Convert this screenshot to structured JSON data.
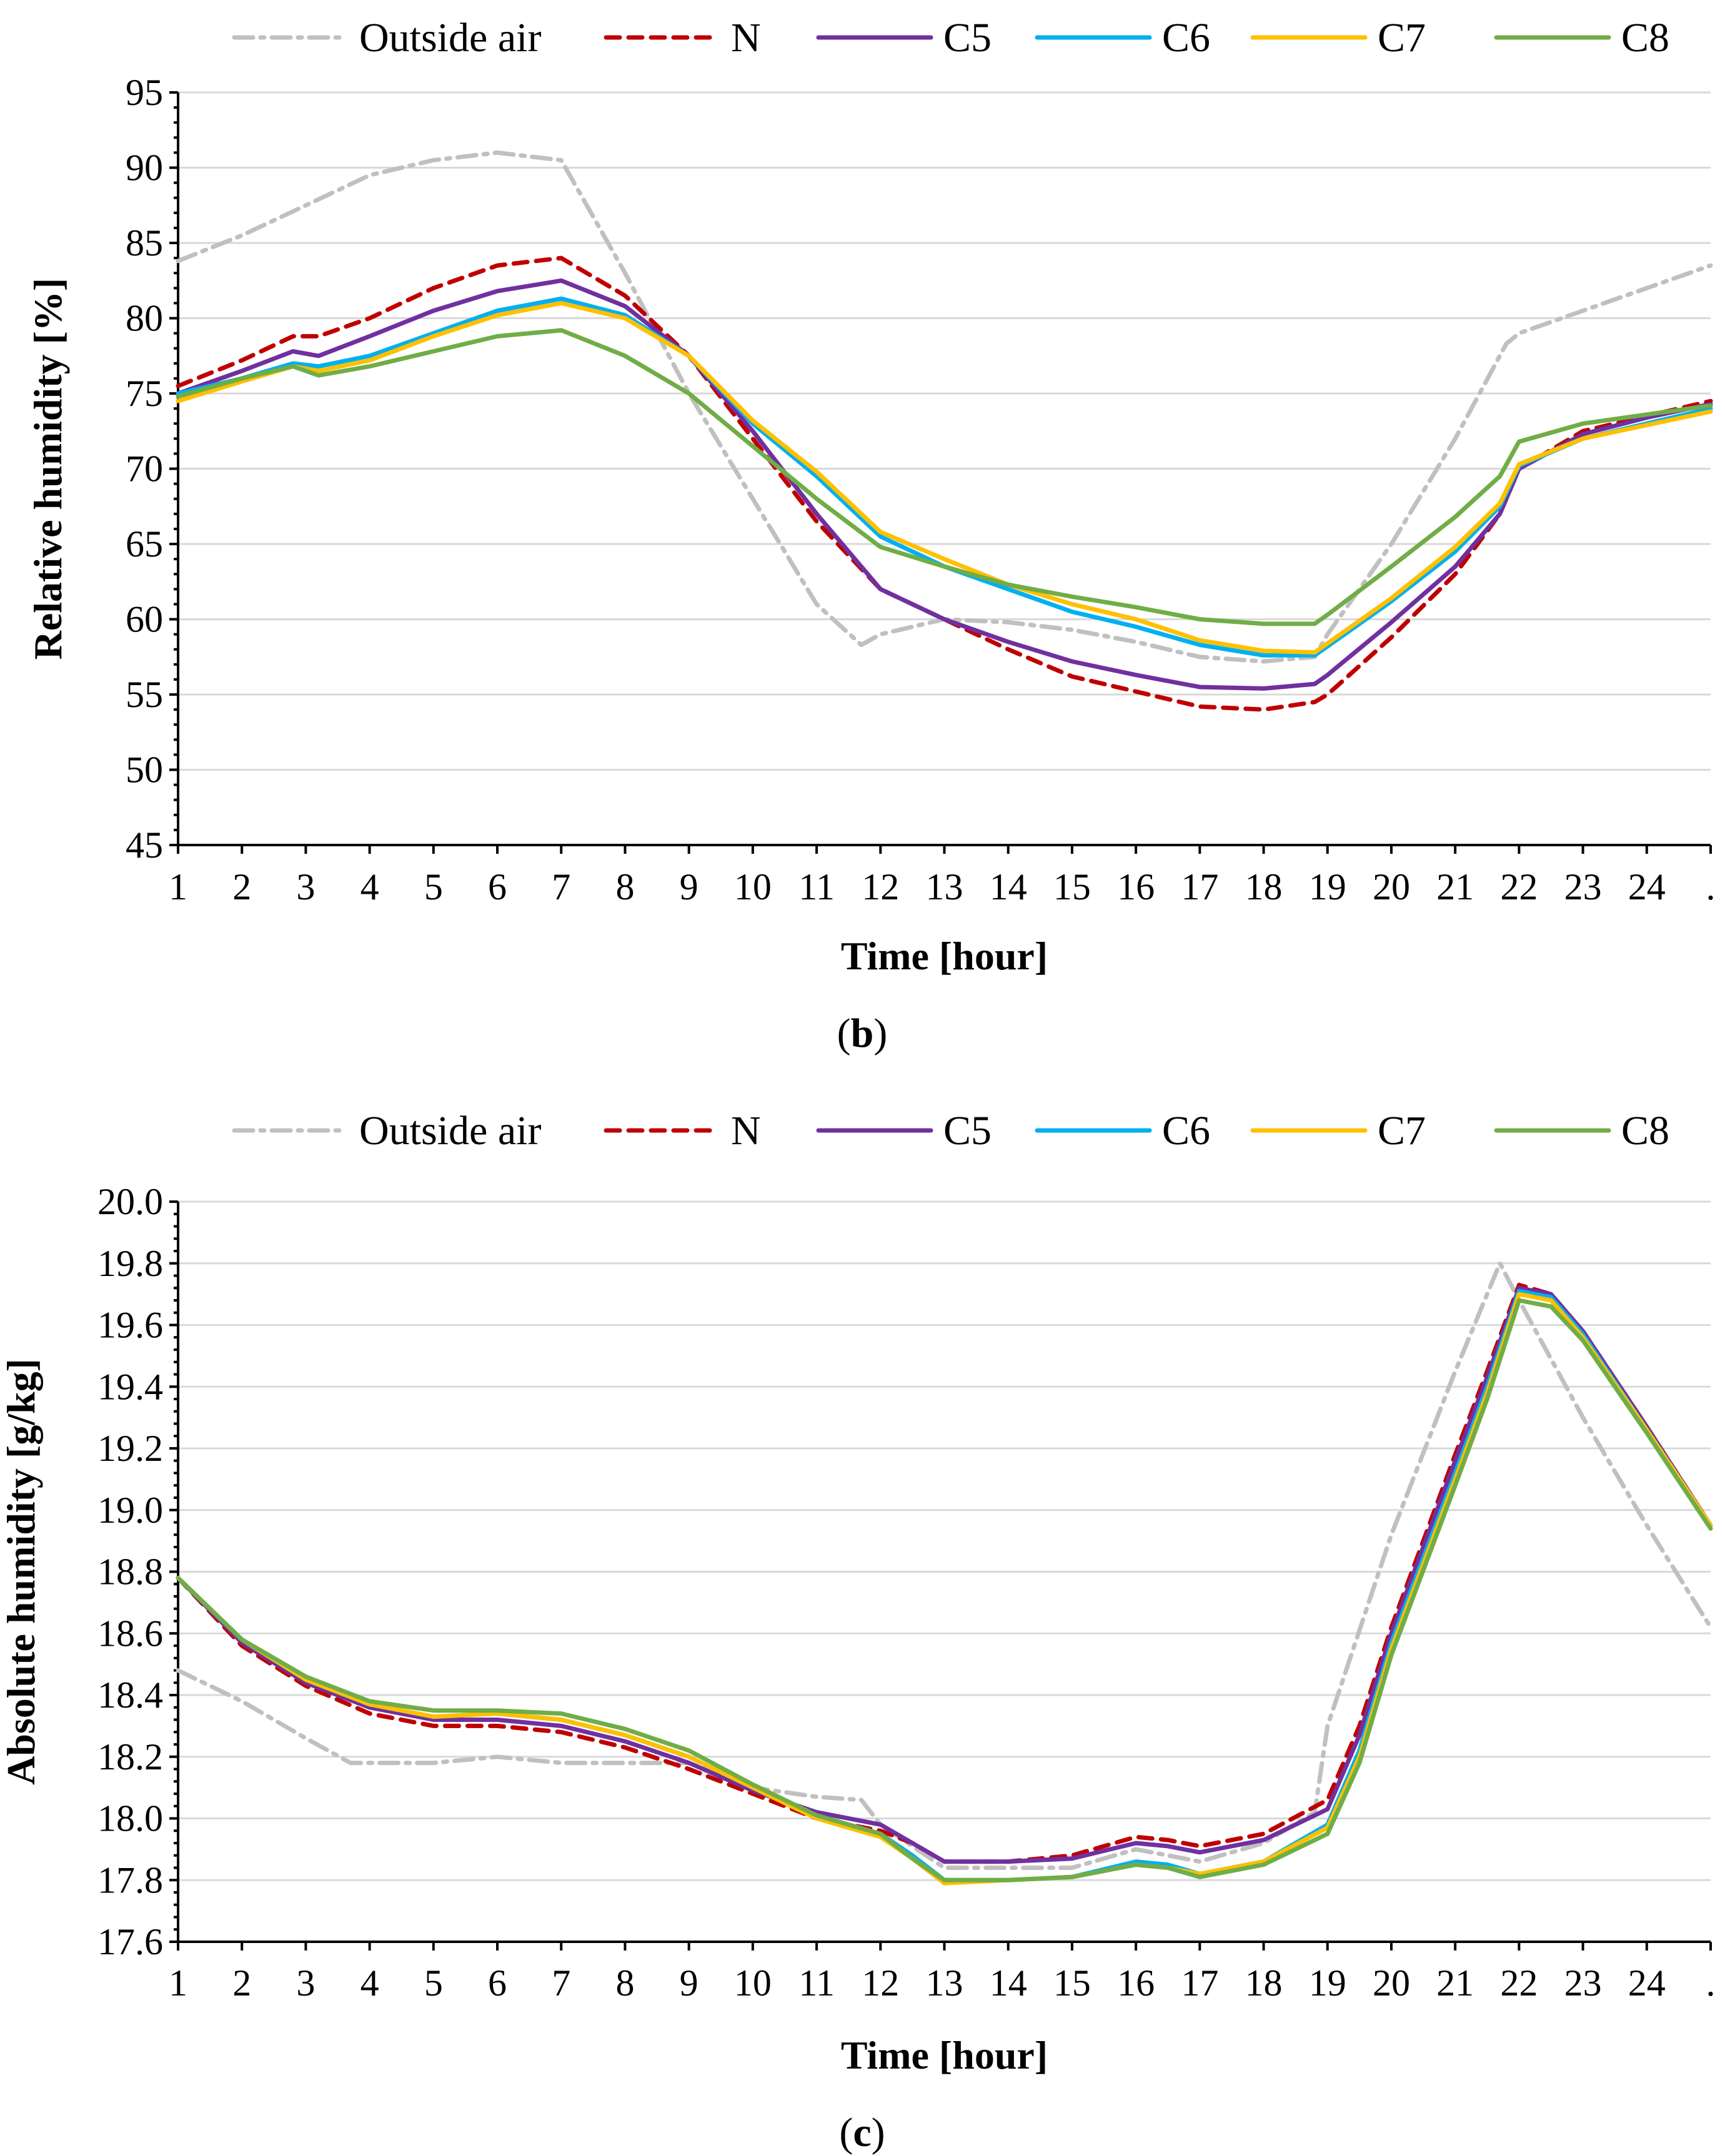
{
  "chart_data": [
    {
      "type": "line",
      "panel_label": "b",
      "xlabel": "Time [hour]",
      "ylabel": "Relative humidity [%]",
      "ylim": [
        45,
        95
      ],
      "yticks": [
        "45",
        "50",
        "55",
        "60",
        "65",
        "70",
        "75",
        "80",
        "85",
        "90",
        "95"
      ],
      "xlim": [
        1,
        25
      ],
      "xticks": [
        "1",
        "2",
        "3",
        "4",
        "5",
        "6",
        "7",
        "8",
        "9",
        "10",
        "11",
        "12",
        "13",
        "14",
        "15",
        "16",
        "17",
        "18",
        "19",
        "20",
        "21",
        "22",
        "23",
        "24",
        "."
      ],
      "grid": "horizontal",
      "legend_position": "top",
      "series": [
        {
          "name": "Outside air",
          "color": "#c0c0c0",
          "dash": "dashdot",
          "x": [
            1,
            2,
            3,
            4,
            5,
            6,
            7,
            8,
            9,
            10,
            11,
            11.7,
            12,
            13,
            14,
            15,
            16,
            17,
            18,
            18.8,
            19,
            20,
            21,
            21.8,
            22,
            23,
            24,
            25
          ],
          "y": [
            83.8,
            85.5,
            87.5,
            89.5,
            90.5,
            91,
            90.5,
            83,
            75,
            68,
            61,
            58.3,
            59,
            60,
            59.8,
            59.3,
            58.5,
            57.5,
            57.2,
            57.5,
            59,
            65,
            72,
            78.3,
            79,
            80.5,
            82,
            83.5
          ]
        },
        {
          "name": "N",
          "color": "#c00000",
          "dash": "dash",
          "x": [
            1,
            2,
            2.8,
            3.2,
            4,
            5,
            6,
            7,
            8,
            9,
            10,
            11,
            12,
            13,
            14,
            15,
            16,
            17,
            18,
            18.8,
            19,
            20,
            21,
            21.7,
            22,
            23,
            24,
            25
          ],
          "y": [
            75.5,
            77.2,
            78.8,
            78.8,
            80,
            82,
            83.5,
            84,
            81.5,
            77.5,
            72,
            66.5,
            62,
            60,
            58,
            56.2,
            55.2,
            54.2,
            54,
            54.5,
            55,
            58.8,
            63,
            67,
            70,
            72.5,
            73.5,
            74.5
          ]
        },
        {
          "name": "C5",
          "color": "#7030a0",
          "dash": "solid",
          "x": [
            1,
            2,
            2.8,
            3.2,
            4,
            5,
            6,
            7,
            8,
            9,
            10,
            11,
            12,
            13,
            14,
            15,
            16,
            17,
            18,
            18.8,
            19,
            20,
            21,
            21.7,
            22,
            23,
            24,
            25
          ],
          "y": [
            75,
            76.5,
            77.8,
            77.5,
            78.8,
            80.5,
            81.8,
            82.5,
            80.8,
            77.5,
            72.5,
            67,
            62,
            60,
            58.5,
            57.2,
            56.3,
            55.5,
            55.4,
            55.7,
            56.3,
            59.8,
            63.5,
            67,
            70,
            72.3,
            73.4,
            74.3
          ]
        },
        {
          "name": "C6",
          "color": "#00b0f0",
          "dash": "solid",
          "x": [
            1,
            2,
            2.8,
            3.2,
            4,
            5,
            6,
            7,
            8,
            9,
            10,
            11,
            12,
            13,
            14,
            15,
            16,
            17,
            18,
            18.8,
            19,
            20,
            21,
            21.7,
            22,
            23,
            24,
            25
          ],
          "y": [
            75,
            76,
            77,
            76.8,
            77.5,
            79,
            80.5,
            81.3,
            80.2,
            77.5,
            73,
            69.5,
            65.5,
            63.5,
            62,
            60.5,
            59.5,
            58.3,
            57.6,
            57.6,
            58.2,
            61.2,
            64.5,
            67.5,
            70.2,
            72,
            73,
            74
          ]
        },
        {
          "name": "C7",
          "color": "#ffc000",
          "dash": "solid",
          "x": [
            1,
            2,
            2.8,
            3.2,
            4,
            5,
            6,
            7,
            8,
            9,
            10,
            11,
            12,
            13,
            14,
            15,
            16,
            17,
            18,
            18.8,
            19,
            20,
            21,
            21.7,
            22,
            23,
            24,
            25
          ],
          "y": [
            74.5,
            75.8,
            76.8,
            76.5,
            77.2,
            78.8,
            80.2,
            81,
            80,
            77.5,
            73.2,
            69.8,
            65.8,
            64,
            62.3,
            61,
            60,
            58.6,
            57.9,
            57.8,
            58.4,
            61.4,
            64.8,
            67.7,
            70.3,
            72,
            72.9,
            73.8
          ]
        },
        {
          "name": "C8",
          "color": "#70ad47",
          "dash": "solid",
          "x": [
            1,
            2,
            2.8,
            3.2,
            4,
            5,
            6,
            7,
            8,
            9,
            10,
            11,
            12,
            13,
            14,
            15,
            16,
            17,
            18,
            18.8,
            19,
            20,
            21,
            21.7,
            22,
            23,
            24,
            25
          ],
          "y": [
            74.8,
            76,
            76.8,
            76.2,
            76.8,
            77.8,
            78.8,
            79.2,
            77.5,
            75,
            71.5,
            68,
            64.8,
            63.5,
            62.3,
            61.5,
            60.8,
            60,
            59.7,
            59.7,
            60.3,
            63.5,
            66.8,
            69.5,
            71.8,
            73,
            73.6,
            74.2
          ]
        }
      ]
    },
    {
      "type": "line",
      "panel_label": "c",
      "xlabel": "Time [hour]",
      "ylabel": "Absolute humidity [g/kg]",
      "ylim": [
        17.6,
        20.0
      ],
      "yticks": [
        "17.6",
        "17.8",
        "18.0",
        "18.2",
        "18.4",
        "18.6",
        "18.8",
        "19.0",
        "19.2",
        "19.4",
        "19.6",
        "19.8",
        "20.0"
      ],
      "xlim": [
        1,
        25
      ],
      "xticks": [
        "1",
        "2",
        "3",
        "4",
        "5",
        "6",
        "7",
        "8",
        "9",
        "10",
        "11",
        "12",
        "13",
        "14",
        "15",
        "16",
        "17",
        "18",
        "19",
        "20",
        "21",
        "22",
        "23",
        "24",
        "."
      ],
      "grid": "horizontal",
      "legend_position": "top",
      "series": [
        {
          "name": "Outside air",
          "color": "#c0c0c0",
          "dash": "dashdot",
          "x": [
            1,
            2,
            3,
            3.7,
            4,
            5,
            6,
            7,
            8,
            9,
            10,
            11,
            11.7,
            12,
            13,
            14,
            15,
            16,
            17,
            18,
            18.8,
            19,
            20,
            21,
            21.7,
            22,
            23,
            24,
            25
          ],
          "y": [
            18.48,
            18.38,
            18.26,
            18.18,
            18.18,
            18.18,
            18.2,
            18.18,
            18.18,
            18.18,
            18.1,
            18.07,
            18.06,
            17.98,
            17.84,
            17.84,
            17.84,
            17.9,
            17.86,
            17.92,
            18.02,
            18.3,
            18.92,
            19.45,
            19.8,
            19.68,
            19.3,
            18.95,
            18.62
          ]
        },
        {
          "name": "N",
          "color": "#c00000",
          "dash": "dash",
          "x": [
            1,
            2,
            3,
            4,
            5,
            6,
            7,
            8,
            9,
            10,
            11,
            12,
            12.5,
            13,
            14,
            15,
            16,
            16.5,
            17,
            18,
            19,
            19.5,
            20,
            21,
            21.5,
            22,
            22.5,
            23,
            24,
            25
          ],
          "y": [
            18.78,
            18.56,
            18.43,
            18.34,
            18.3,
            18.3,
            18.28,
            18.23,
            18.16,
            18.08,
            18.0,
            17.96,
            17.92,
            17.86,
            17.86,
            17.88,
            17.94,
            17.93,
            17.91,
            17.95,
            18.06,
            18.3,
            18.62,
            19.18,
            19.45,
            19.73,
            19.7,
            19.58,
            19.27,
            18.95
          ]
        },
        {
          "name": "C5",
          "color": "#7030a0",
          "dash": "solid",
          "x": [
            1,
            2,
            3,
            4,
            5,
            6,
            7,
            8,
            9,
            10,
            11,
            12,
            12.5,
            13,
            14,
            15,
            16,
            16.5,
            17,
            18,
            19,
            19.5,
            20,
            21,
            21.5,
            22,
            22.5,
            23,
            24,
            25
          ],
          "y": [
            18.78,
            18.57,
            18.44,
            18.36,
            18.32,
            18.32,
            18.3,
            18.25,
            18.18,
            18.09,
            18.02,
            17.98,
            17.92,
            17.86,
            17.86,
            17.87,
            17.92,
            17.91,
            17.89,
            17.93,
            18.03,
            18.27,
            18.6,
            19.16,
            19.43,
            19.72,
            19.7,
            19.58,
            19.27,
            18.95
          ]
        },
        {
          "name": "C6",
          "color": "#00b0f0",
          "dash": "solid",
          "x": [
            1,
            2,
            3,
            4,
            5,
            6,
            7,
            8,
            9,
            10,
            11,
            12,
            12.5,
            13,
            14,
            15,
            16,
            16.5,
            17,
            18,
            19,
            19.5,
            20,
            21,
            21.5,
            22,
            22.5,
            23,
            24,
            25
          ],
          "y": [
            18.78,
            18.58,
            18.45,
            18.37,
            18.33,
            18.34,
            18.32,
            18.27,
            18.2,
            18.1,
            18.01,
            17.95,
            17.88,
            17.8,
            17.8,
            17.81,
            17.86,
            17.85,
            17.82,
            17.86,
            17.98,
            18.22,
            18.57,
            19.12,
            19.4,
            19.71,
            19.69,
            19.57,
            19.26,
            18.95
          ]
        },
        {
          "name": "C7",
          "color": "#ffc000",
          "dash": "solid",
          "x": [
            1,
            2,
            3,
            4,
            5,
            6,
            7,
            8,
            9,
            10,
            11,
            12,
            12.5,
            13,
            14,
            15,
            16,
            16.5,
            17,
            18,
            19,
            19.5,
            20,
            21,
            21.5,
            22,
            22.5,
            23,
            24,
            25
          ],
          "y": [
            18.78,
            18.58,
            18.45,
            18.37,
            18.33,
            18.34,
            18.32,
            18.27,
            18.2,
            18.1,
            18.0,
            17.94,
            17.87,
            17.79,
            17.8,
            17.81,
            17.85,
            17.84,
            17.82,
            17.86,
            17.97,
            18.2,
            18.55,
            19.1,
            19.38,
            19.7,
            19.68,
            19.56,
            19.26,
            18.95
          ]
        },
        {
          "name": "C8",
          "color": "#70ad47",
          "dash": "solid",
          "x": [
            1,
            2,
            3,
            4,
            5,
            6,
            7,
            8,
            9,
            10,
            11,
            12,
            12.5,
            13,
            14,
            15,
            16,
            16.5,
            17,
            18,
            19,
            19.5,
            20,
            21,
            21.5,
            22,
            22.5,
            23,
            24,
            25
          ],
          "y": [
            18.78,
            18.58,
            18.46,
            18.38,
            18.35,
            18.35,
            18.34,
            18.29,
            18.22,
            18.11,
            18.01,
            17.95,
            17.87,
            17.8,
            17.8,
            17.81,
            17.85,
            17.84,
            17.81,
            17.85,
            17.95,
            18.18,
            18.53,
            19.08,
            19.36,
            19.68,
            19.66,
            19.55,
            19.25,
            18.94
          ]
        }
      ]
    }
  ]
}
